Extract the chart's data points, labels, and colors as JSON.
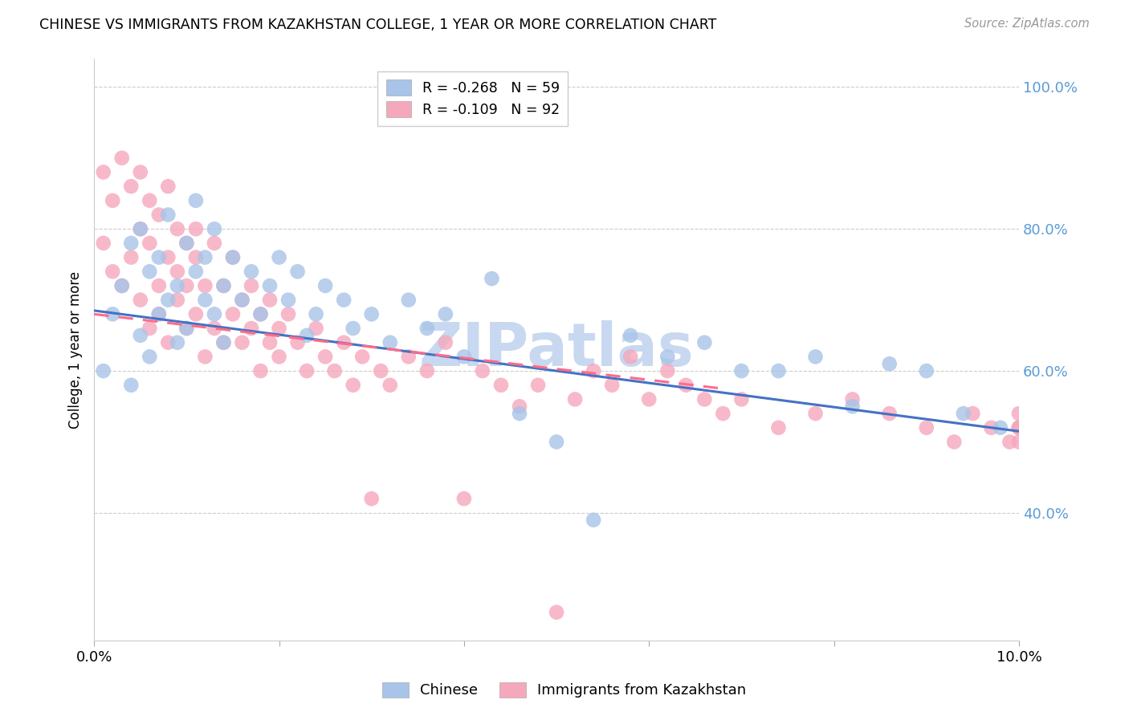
{
  "title": "CHINESE VS IMMIGRANTS FROM KAZAKHSTAN COLLEGE, 1 YEAR OR MORE CORRELATION CHART",
  "source": "Source: ZipAtlas.com",
  "ylabel": "College, 1 year or more",
  "xmin": 0.0,
  "xmax": 0.1,
  "ymin": 0.22,
  "ymax": 1.04,
  "yticks": [
    0.4,
    0.6,
    0.8,
    1.0
  ],
  "ytick_labels": [
    "40.0%",
    "60.0%",
    "80.0%",
    "100.0%"
  ],
  "xticks": [
    0.0,
    0.1
  ],
  "xtick_labels": [
    "0.0%",
    "10.0%"
  ],
  "blue_R": -0.268,
  "blue_N": 59,
  "pink_R": -0.109,
  "pink_N": 92,
  "blue_color": "#A8C4E8",
  "pink_color": "#F5A8BC",
  "trend_blue_color": "#4472C4",
  "trend_pink_color": "#FF6B8A",
  "watermark_text": "ZIPatlas",
  "watermark_color": "#C8D8F0",
  "legend_label_blue": "Chinese",
  "legend_label_pink": "Immigrants from Kazakhstan",
  "blue_scatter_x": [
    0.001,
    0.002,
    0.003,
    0.004,
    0.004,
    0.005,
    0.005,
    0.006,
    0.006,
    0.007,
    0.007,
    0.008,
    0.008,
    0.009,
    0.009,
    0.01,
    0.01,
    0.011,
    0.011,
    0.012,
    0.012,
    0.013,
    0.013,
    0.014,
    0.014,
    0.015,
    0.016,
    0.017,
    0.018,
    0.019,
    0.02,
    0.021,
    0.022,
    0.023,
    0.024,
    0.025,
    0.027,
    0.028,
    0.03,
    0.032,
    0.034,
    0.036,
    0.038,
    0.04,
    0.043,
    0.046,
    0.05,
    0.054,
    0.058,
    0.062,
    0.066,
    0.07,
    0.074,
    0.078,
    0.082,
    0.086,
    0.09,
    0.094,
    0.098
  ],
  "blue_scatter_y": [
    0.6,
    0.68,
    0.72,
    0.58,
    0.78,
    0.65,
    0.8,
    0.62,
    0.74,
    0.68,
    0.76,
    0.7,
    0.82,
    0.64,
    0.72,
    0.78,
    0.66,
    0.74,
    0.84,
    0.7,
    0.76,
    0.68,
    0.8,
    0.72,
    0.64,
    0.76,
    0.7,
    0.74,
    0.68,
    0.72,
    0.76,
    0.7,
    0.74,
    0.65,
    0.68,
    0.72,
    0.7,
    0.66,
    0.68,
    0.64,
    0.7,
    0.66,
    0.68,
    0.62,
    0.73,
    0.54,
    0.5,
    0.39,
    0.65,
    0.62,
    0.64,
    0.6,
    0.6,
    0.62,
    0.55,
    0.61,
    0.6,
    0.54,
    0.52
  ],
  "pink_scatter_x": [
    0.001,
    0.001,
    0.002,
    0.002,
    0.003,
    0.003,
    0.004,
    0.004,
    0.005,
    0.005,
    0.005,
    0.006,
    0.006,
    0.006,
    0.007,
    0.007,
    0.007,
    0.008,
    0.008,
    0.008,
    0.009,
    0.009,
    0.009,
    0.01,
    0.01,
    0.01,
    0.011,
    0.011,
    0.011,
    0.012,
    0.012,
    0.013,
    0.013,
    0.014,
    0.014,
    0.015,
    0.015,
    0.016,
    0.016,
    0.017,
    0.017,
    0.018,
    0.018,
    0.019,
    0.019,
    0.02,
    0.02,
    0.021,
    0.022,
    0.023,
    0.024,
    0.025,
    0.026,
    0.027,
    0.028,
    0.029,
    0.03,
    0.031,
    0.032,
    0.034,
    0.036,
    0.038,
    0.04,
    0.042,
    0.044,
    0.046,
    0.048,
    0.05,
    0.052,
    0.054,
    0.056,
    0.058,
    0.06,
    0.062,
    0.064,
    0.066,
    0.068,
    0.07,
    0.074,
    0.078,
    0.082,
    0.086,
    0.09,
    0.093,
    0.095,
    0.097,
    0.099,
    0.1,
    0.1,
    0.1,
    0.1,
    0.1
  ],
  "pink_scatter_y": [
    0.78,
    0.88,
    0.74,
    0.84,
    0.9,
    0.72,
    0.86,
    0.76,
    0.88,
    0.7,
    0.8,
    0.84,
    0.66,
    0.78,
    0.72,
    0.82,
    0.68,
    0.76,
    0.86,
    0.64,
    0.8,
    0.7,
    0.74,
    0.78,
    0.66,
    0.72,
    0.8,
    0.68,
    0.76,
    0.72,
    0.62,
    0.78,
    0.66,
    0.72,
    0.64,
    0.68,
    0.76,
    0.64,
    0.7,
    0.66,
    0.72,
    0.68,
    0.6,
    0.64,
    0.7,
    0.66,
    0.62,
    0.68,
    0.64,
    0.6,
    0.66,
    0.62,
    0.6,
    0.64,
    0.58,
    0.62,
    0.42,
    0.6,
    0.58,
    0.62,
    0.6,
    0.64,
    0.42,
    0.6,
    0.58,
    0.55,
    0.58,
    0.26,
    0.56,
    0.6,
    0.58,
    0.62,
    0.56,
    0.6,
    0.58,
    0.56,
    0.54,
    0.56,
    0.52,
    0.54,
    0.56,
    0.54,
    0.52,
    0.5,
    0.54,
    0.52,
    0.5,
    0.52,
    0.54,
    0.52,
    0.5,
    0.52
  ],
  "blue_trend_x": [
    0.0,
    0.1
  ],
  "blue_trend_y": [
    0.685,
    0.515
  ],
  "pink_trend_x": [
    0.0,
    0.068
  ],
  "pink_trend_y": [
    0.68,
    0.575
  ]
}
